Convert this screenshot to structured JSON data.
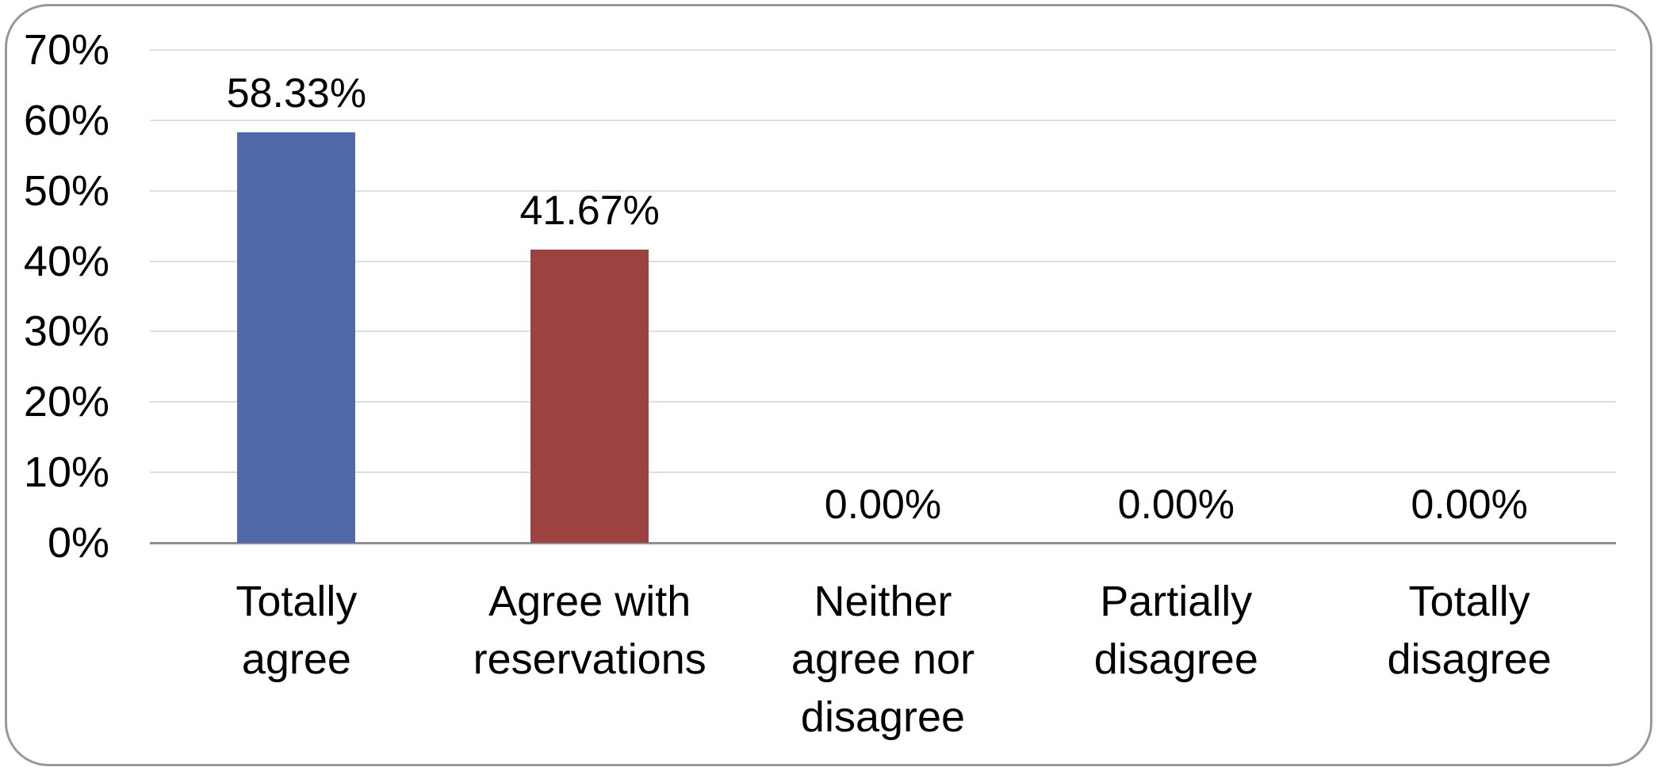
{
  "chart_data": {
    "type": "bar",
    "title": "",
    "xlabel": "",
    "ylabel": "",
    "categories": [
      "Totally agree",
      "Agree with reservations",
      "Neither agree nor disagree",
      "Partially disagree",
      "Totally disagree"
    ],
    "category_lines": [
      [
        "Totally",
        "agree"
      ],
      [
        "Agree with",
        "reservations"
      ],
      [
        "Neither",
        "agree nor",
        "disagree"
      ],
      [
        "Partially",
        "disagree"
      ],
      [
        "Totally",
        "disagree"
      ]
    ],
    "values": [
      58.33,
      41.67,
      0,
      0,
      0
    ],
    "value_labels": [
      "58.33%",
      "41.67%",
      "0.00%",
      "0.00%",
      "0.00%"
    ],
    "y_ticks": [
      "70%",
      "60%",
      "50%",
      "40%",
      "30%",
      "20%",
      "10%",
      "0%"
    ],
    "y_tick_values": [
      70,
      60,
      50,
      40,
      30,
      20,
      10,
      0
    ],
    "ylim": [
      0,
      70
    ],
    "grid": true,
    "legend": false,
    "bar_colors": [
      "#5169a8",
      "#9c4241",
      "#5169a8",
      "#5169a8",
      "#5169a8"
    ],
    "colors": {
      "gridline": "#dedede",
      "baseline": "#8f8f8f",
      "border": "#999999",
      "text": "#000000",
      "background": "#ffffff"
    }
  }
}
